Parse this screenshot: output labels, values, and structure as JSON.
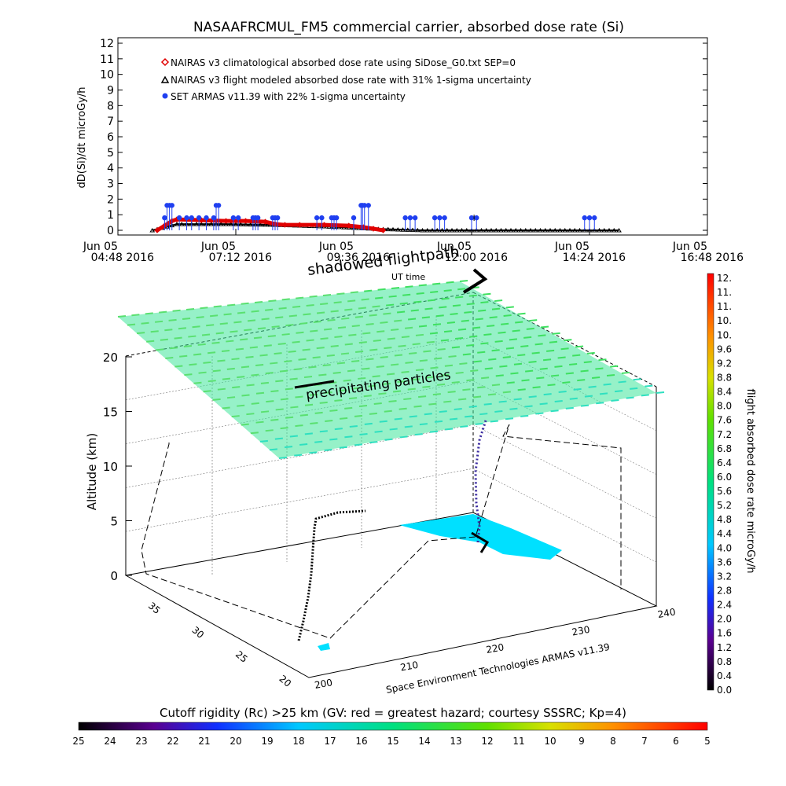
{
  "chart_data": [
    {
      "type": "scatter",
      "title": "NASAAFRCMUL_FM5 commercial carrier, absorbed dose rate (Si)",
      "ylabel": "dD(Si)/dt microGy/h",
      "xlabel": "",
      "ylim": [
        0,
        12
      ],
      "yticks": [
        "0",
        "1",
        "2",
        "3",
        "4",
        "5",
        "6",
        "7",
        "8",
        "9",
        "10",
        "11",
        "12"
      ],
      "xtick_days": [
        "Jun 05",
        "Jun 05",
        "Jun 05",
        "Jun 05",
        "Jun 05",
        "Jun 05"
      ],
      "xtick_times": [
        "04:48 2016",
        "07:12 2016",
        "09:36 2016",
        "12:00 2016",
        "14:24 2016",
        "16:48 2016"
      ],
      "xrange_hours": [
        4.8,
        16.8
      ],
      "legend": [
        {
          "label": "NAIRAS v3 climatological absorbed dose rate using SiDose_G0.txt SEP=0",
          "color": "#e00000",
          "marker": "diamond"
        },
        {
          "label": "NAIRAS v3 flight modeled absorbed dose rate with 31% 1-sigma uncertainty",
          "color": "#000000",
          "marker": "triangle"
        },
        {
          "label": "SET ARMAS v11.39 with 22% 1-sigma uncertainty",
          "color": "#1f3ff0",
          "marker": "circle"
        }
      ],
      "series": [
        {
          "name": "NAIRAS v3 climatological absorbed dose rate using SiDose_G0.txt SEP=0",
          "x": [
            5.6,
            5.75,
            5.9,
            6.0,
            6.5,
            7.0,
            7.4,
            7.8,
            8.0,
            8.2,
            8.5,
            9.0,
            9.5,
            9.8,
            10.0,
            10.2
          ],
          "y": [
            0.0,
            0.3,
            0.6,
            0.7,
            0.65,
            0.6,
            0.6,
            0.55,
            0.4,
            0.35,
            0.35,
            0.35,
            0.3,
            0.2,
            0.1,
            0.0
          ]
        },
        {
          "name": "NAIRAS v3 flight modeled absorbed dose rate with 31% 1-sigma uncertainty",
          "x": [
            5.5,
            6.0,
            7.0,
            8.0,
            9.0,
            10.0,
            11.0,
            12.0,
            13.0,
            14.0,
            15.0
          ],
          "y": [
            0.0,
            0.4,
            0.4,
            0.35,
            0.25,
            0.1,
            0.0,
            0.0,
            0.0,
            0.0,
            0.0
          ]
        },
        {
          "name": "SET ARMAS v11.39 with 22% 1-sigma uncertainty",
          "x": [
            5.75,
            5.8,
            5.85,
            5.9,
            6.05,
            6.2,
            6.3,
            6.45,
            6.6,
            6.75,
            6.8,
            6.85,
            7.15,
            7.25,
            7.55,
            7.6,
            7.65,
            7.95,
            8.0,
            8.05,
            8.85,
            8.95,
            9.15,
            9.2,
            9.25,
            9.6,
            9.75,
            9.78,
            9.82,
            9.9,
            10.65,
            10.75,
            10.85,
            11.25,
            11.35,
            11.45,
            12.0,
            12.1,
            14.3,
            14.4,
            14.5
          ],
          "y": [
            0.8,
            1.6,
            1.6,
            1.6,
            0.8,
            0.8,
            0.8,
            0.8,
            0.8,
            0.8,
            1.6,
            1.6,
            0.8,
            0.8,
            0.8,
            0.8,
            0.8,
            0.8,
            0.8,
            0.8,
            0.8,
            0.8,
            0.8,
            0.8,
            0.8,
            0.8,
            1.6,
            1.6,
            1.6,
            1.6,
            0.8,
            0.8,
            0.8,
            0.8,
            0.8,
            0.8,
            0.8,
            0.8,
            0.8,
            0.8,
            0.8
          ]
        }
      ]
    },
    {
      "type": "scatter",
      "title": "",
      "zlabel": "Altitude (km)",
      "zticks": [
        "0",
        "5",
        "10",
        "15",
        "20"
      ],
      "lat_ticks": [
        "20",
        "25",
        "30",
        "35"
      ],
      "lon_ticks": [
        "200",
        "210",
        "220",
        "230",
        "240"
      ],
      "annotations": [
        "shadowed flightpath",
        "UT time",
        "precipitating particles",
        "Space Environment Technologies ARMAS v11.39"
      ],
      "colorbar": {
        "label": "flight absorbed dose rate microGy/h",
        "ticks": [
          "12.",
          "11.",
          "11.",
          "10.",
          "10.",
          "9.6",
          "9.2",
          "8.8",
          "8.4",
          "8.0",
          "7.6",
          "7.2",
          "6.8",
          "6.4",
          "6.0",
          "5.6",
          "5.2",
          "4.8",
          "4.4",
          "4.0",
          "3.6",
          "3.2",
          "2.8",
          "2.4",
          "2.0",
          "1.6",
          "1.2",
          "0.8",
          "0.4",
          "0.0"
        ]
      }
    },
    {
      "type": "heatmap",
      "title": "Cutoff rigidity (Rc) >25 km (GV: red = greatest hazard; courtesy SSSRC; Kp=4)",
      "colorbar_ticks": [
        "25",
        "24",
        "23",
        "22",
        "21",
        "20",
        "19",
        "18",
        "17",
        "16",
        "15",
        "14",
        "13",
        "12",
        "11",
        "10",
        "9",
        "8",
        "7",
        "6",
        "5"
      ]
    }
  ]
}
